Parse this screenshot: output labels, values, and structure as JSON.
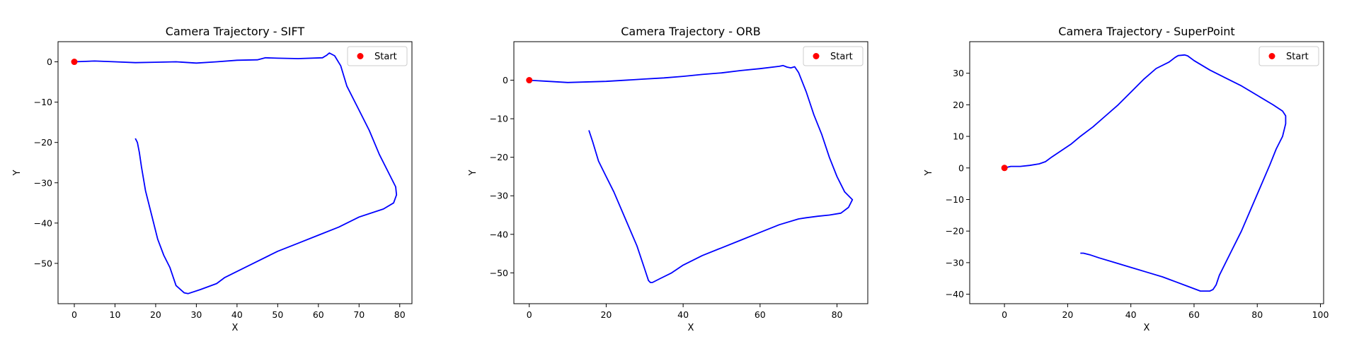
{
  "chart_data": [
    {
      "type": "line",
      "title": "Camera Trajectory - SIFT",
      "xlabel": "X",
      "ylabel": "Y",
      "xlim": [
        -4,
        83
      ],
      "ylim": [
        -60,
        5
      ],
      "xticks": [
        0,
        10,
        20,
        30,
        40,
        50,
        60,
        70,
        80
      ],
      "yticks": [
        0,
        -10,
        -20,
        -30,
        -40,
        -50
      ],
      "grid": false,
      "legend": {
        "entries": [
          "Start"
        ],
        "placement": "top-right"
      },
      "series": [
        {
          "color": "#0000ff",
          "x": [
            0,
            5,
            10,
            15,
            20,
            25,
            30,
            35,
            40,
            45,
            47,
            50,
            55,
            61,
            62,
            62.7,
            64,
            65.5,
            67,
            70,
            72.5,
            75,
            77.5,
            79,
            79.2,
            78.5,
            76,
            70,
            65,
            60,
            55,
            50,
            45,
            40,
            37,
            35,
            31,
            28,
            27,
            25,
            23.5,
            22,
            20.5,
            19,
            17.5,
            16.5,
            16,
            15.5,
            15
          ],
          "y": [
            0,
            0.2,
            0,
            -0.2,
            -0.1,
            0,
            -0.3,
            0,
            0.4,
            0.5,
            1,
            0.9,
            0.8,
            1,
            1.6,
            2.2,
            1.5,
            -1,
            -6,
            -12,
            -17,
            -23,
            -28,
            -31,
            -33,
            -35,
            -36.5,
            -38.5,
            -41,
            -43,
            -45,
            -47,
            -49.5,
            -52,
            -53.5,
            -55,
            -56.5,
            -57.5,
            -57.3,
            -55.5,
            -51,
            -48,
            -44,
            -38,
            -32,
            -26,
            -22.5,
            -20,
            -19
          ]
        }
      ],
      "start_point": {
        "x": 0,
        "y": 0,
        "color": "#ff0000"
      }
    },
    {
      "type": "line",
      "title": "Camera Trajectory - ORB",
      "xlabel": "X",
      "ylabel": "Y",
      "xlim": [
        -4,
        88
      ],
      "ylim": [
        -58,
        10
      ],
      "xticks": [
        0,
        20,
        40,
        60,
        80
      ],
      "yticks": [
        0,
        -10,
        -20,
        -30,
        -40,
        -50
      ],
      "grid": false,
      "legend": {
        "entries": [
          "Start"
        ],
        "placement": "top-right"
      },
      "series": [
        {
          "color": "#0000ff",
          "x": [
            0,
            5,
            10,
            20,
            30,
            35,
            40,
            45,
            50,
            55,
            60,
            65,
            66,
            67,
            68,
            69,
            70,
            72,
            74,
            76,
            78,
            80,
            82,
            84,
            83,
            81,
            78,
            75,
            72,
            70,
            65,
            60,
            55,
            50,
            45,
            40,
            37,
            34,
            32,
            31.5,
            31,
            30,
            28,
            25,
            22,
            20,
            18,
            16.5,
            15.5
          ],
          "y": [
            0,
            -0.3,
            -0.6,
            -0.3,
            0.3,
            0.6,
            1,
            1.5,
            1.9,
            2.5,
            3,
            3.6,
            3.8,
            3.4,
            3.2,
            3.5,
            2,
            -3,
            -9,
            -14,
            -20,
            -25,
            -29,
            -31,
            -33,
            -34.5,
            -35,
            -35.3,
            -35.7,
            -36,
            -37.5,
            -39.5,
            -41.5,
            -43.5,
            -45.5,
            -48,
            -50,
            -51.5,
            -52.5,
            -52.5,
            -52,
            -49,
            -43,
            -36,
            -29,
            -25,
            -21,
            -16,
            -13
          ]
        }
      ],
      "start_point": {
        "x": 0,
        "y": 0,
        "color": "#ff0000"
      }
    },
    {
      "type": "line",
      "title": "Camera Trajectory - SuperPoint",
      "xlabel": "X",
      "ylabel": "Y",
      "xlim": [
        -11,
        101
      ],
      "ylim": [
        -43,
        40
      ],
      "xticks": [
        0,
        20,
        40,
        60,
        80,
        100
      ],
      "yticks": [
        30,
        20,
        10,
        0,
        -10,
        -20,
        -30,
        -40
      ],
      "grid": false,
      "legend": {
        "entries": [
          "Start"
        ],
        "placement": "top-right"
      },
      "series": [
        {
          "color": "#0000ff",
          "x": [
            0,
            2,
            5,
            8,
            11,
            13,
            15,
            18,
            21,
            24,
            28,
            32,
            36,
            40,
            44,
            48,
            52,
            54,
            55,
            57,
            58,
            60,
            65,
            70,
            75,
            80,
            85,
            88,
            89,
            89,
            88,
            86,
            84,
            81,
            78,
            75,
            72,
            70,
            68,
            67,
            66,
            65,
            62,
            58,
            54,
            50,
            45,
            40,
            35,
            30,
            27,
            25,
            24
          ],
          "y": [
            0,
            0.5,
            0.5,
            0.8,
            1.3,
            2,
            3.5,
            5.5,
            7.5,
            10,
            13,
            16.5,
            20,
            24,
            28,
            31.5,
            33.5,
            35,
            35.6,
            35.8,
            35.5,
            34,
            31,
            28.5,
            26,
            23,
            20,
            18,
            16.5,
            14,
            10,
            6,
            1,
            -6,
            -13,
            -20,
            -26,
            -30,
            -34,
            -37,
            -38.5,
            -39,
            -39,
            -37.5,
            -36,
            -34.5,
            -33,
            -31.5,
            -30,
            -28.5,
            -27.5,
            -27,
            -27
          ]
        }
      ],
      "start_point": {
        "x": 0,
        "y": 0,
        "color": "#ff0000"
      }
    }
  ]
}
